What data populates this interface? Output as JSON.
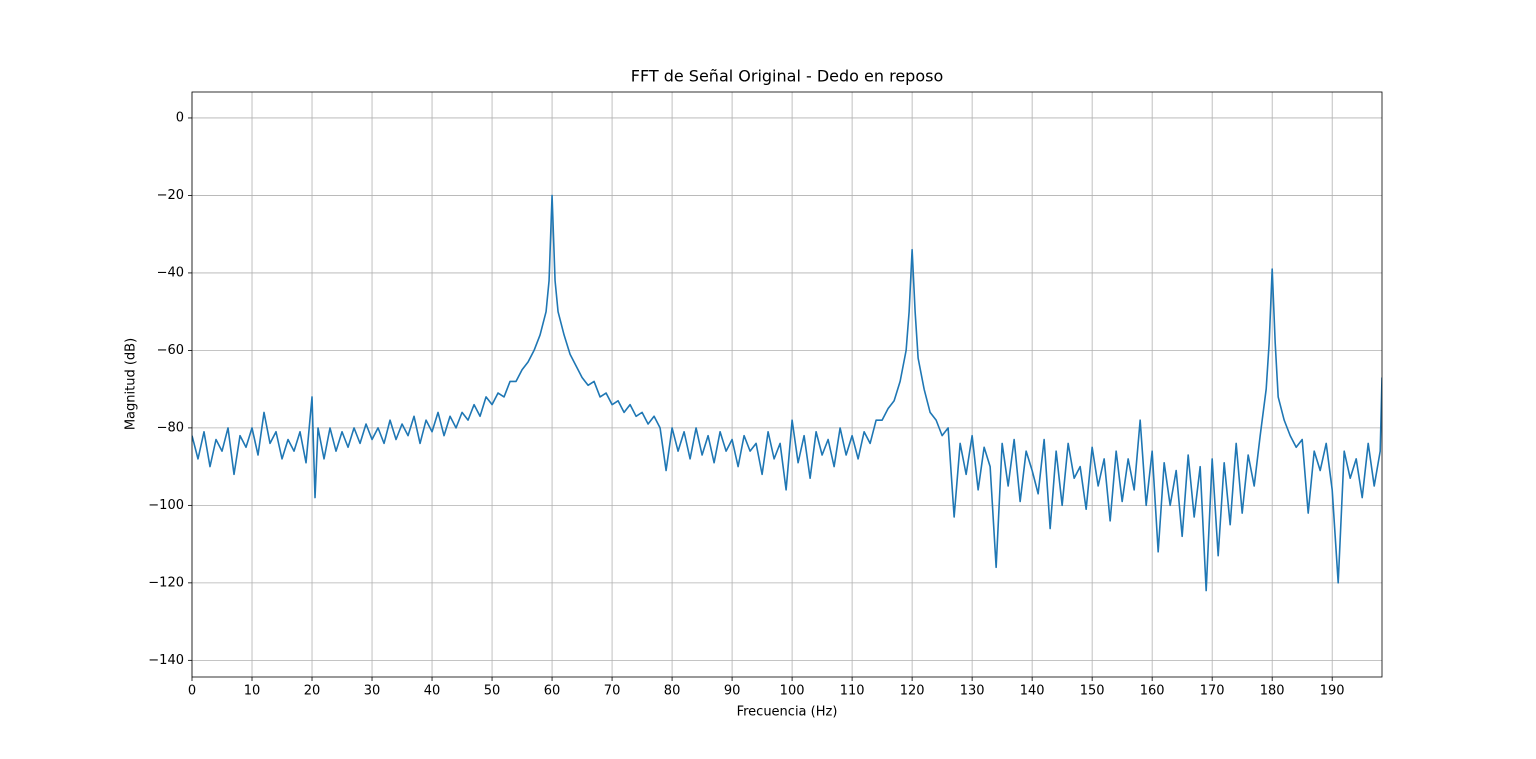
{
  "chart_data": {
    "type": "line",
    "title": "FFT de Señal Original - Dedo en reposo",
    "x_label": "Frecuencia (Hz)",
    "y_label": "Magnitud (dB)",
    "grid": true,
    "xlim": [
      0,
      198.3
    ],
    "ylim": [
      -144.3,
      6.7
    ],
    "xticks": [
      0,
      10,
      20,
      30,
      40,
      50,
      60,
      70,
      80,
      90,
      100,
      110,
      120,
      130,
      140,
      150,
      160,
      170,
      180,
      190
    ],
    "yticks": [
      {
        "value": -140,
        "label": "−140"
      },
      {
        "value": -120,
        "label": "−120"
      },
      {
        "value": -100,
        "label": "−100"
      },
      {
        "value": -80,
        "label": "−80"
      },
      {
        "value": -60,
        "label": "−60"
      },
      {
        "value": -40,
        "label": "−40"
      },
      {
        "value": -20,
        "label": "−20"
      },
      0
    ],
    "x": [
      0,
      1,
      2,
      3,
      4,
      5,
      6,
      7,
      8,
      9,
      10,
      11,
      12,
      13,
      14,
      15,
      16,
      17,
      18,
      19,
      20,
      20.5,
      21,
      22,
      23,
      24,
      25,
      26,
      27,
      28,
      29,
      30,
      31,
      32,
      33,
      34,
      35,
      36,
      37,
      38,
      39,
      40,
      41,
      42,
      43,
      44,
      45,
      46,
      47,
      48,
      49,
      50,
      51,
      52,
      53,
      54,
      55,
      56,
      57,
      58,
      59,
      59.5,
      60,
      60.5,
      61,
      62,
      63,
      64,
      65,
      66,
      67,
      68,
      69,
      70,
      71,
      72,
      73,
      74,
      75,
      76,
      77,
      78,
      79,
      80,
      81,
      82,
      83,
      84,
      85,
      86,
      87,
      88,
      89,
      90,
      91,
      92,
      93,
      94,
      95,
      96,
      97,
      98,
      99,
      100,
      101,
      102,
      103,
      104,
      105,
      106,
      107,
      108,
      109,
      110,
      111,
      112,
      113,
      114,
      115,
      116,
      117,
      118,
      119,
      119.5,
      120,
      120.5,
      121,
      122,
      123,
      124,
      125,
      126,
      127,
      128,
      129,
      130,
      131,
      132,
      133,
      134,
      135,
      136,
      137,
      138,
      139,
      140,
      141,
      142,
      143,
      144,
      145,
      146,
      147,
      148,
      149,
      150,
      151,
      152,
      153,
      154,
      155,
      156,
      157,
      158,
      159,
      160,
      161,
      162,
      163,
      164,
      165,
      166,
      167,
      168,
      169,
      170,
      171,
      172,
      173,
      174,
      175,
      176,
      177,
      178,
      179,
      179.5,
      180,
      180.5,
      181,
      182,
      183,
      184,
      185,
      186,
      187,
      188,
      189,
      190,
      191,
      192,
      193,
      194,
      195,
      196,
      197,
      198,
      198.3
    ],
    "series": [
      {
        "color": "#1f77b4",
        "values": [
          -82,
          -88,
          -81,
          -90,
          -83,
          -86,
          -80,
          -92,
          -82,
          -85,
          -80,
          -87,
          -76,
          -84,
          -81,
          -88,
          -83,
          -86,
          -81,
          -89,
          -72,
          -98,
          -80,
          -88,
          -80,
          -86,
          -81,
          -85,
          -80,
          -84,
          -79,
          -83,
          -80,
          -84,
          -78,
          -83,
          -79,
          -82,
          -77,
          -84,
          -78,
          -81,
          -76,
          -82,
          -77,
          -80,
          -76,
          -78,
          -74,
          -77,
          -72,
          -74,
          -71,
          -72,
          -68,
          -68,
          -65,
          -63,
          -60,
          -56,
          -50,
          -42,
          -20,
          -42,
          -50,
          -56,
          -61,
          -64,
          -67,
          -69,
          -68,
          -72,
          -71,
          -74,
          -73,
          -76,
          -74,
          -77,
          -76,
          -79,
          -77,
          -80,
          -91,
          -80,
          -86,
          -81,
          -88,
          -80,
          -87,
          -82,
          -89,
          -81,
          -86,
          -83,
          -90,
          -82,
          -86,
          -84,
          -92,
          -81,
          -88,
          -84,
          -96,
          -78,
          -89,
          -82,
          -93,
          -81,
          -87,
          -83,
          -90,
          -80,
          -87,
          -82,
          -88,
          -81,
          -84,
          -78,
          -78,
          -75,
          -73,
          -68,
          -60,
          -50,
          -34,
          -50,
          -62,
          -70,
          -76,
          -78,
          -82,
          -80,
          -103,
          -84,
          -92,
          -82,
          -96,
          -85,
          -90,
          -116,
          -84,
          -95,
          -83,
          -99,
          -86,
          -91,
          -97,
          -83,
          -106,
          -86,
          -100,
          -84,
          -93,
          -90,
          -101,
          -85,
          -95,
          -88,
          -104,
          -86,
          -99,
          -88,
          -96,
          -78,
          -100,
          -86,
          -112,
          -89,
          -100,
          -91,
          -108,
          -87,
          -103,
          -90,
          -122,
          -88,
          -113,
          -89,
          -105,
          -84,
          -102,
          -87,
          -95,
          -82,
          -70,
          -58,
          -39,
          -58,
          -72,
          -78,
          -82,
          -85,
          -83,
          -102,
          -86,
          -91,
          -84,
          -96,
          -120,
          -86,
          -93,
          -88,
          -98,
          -84,
          -95,
          -86,
          -67
        ]
      }
    ]
  }
}
